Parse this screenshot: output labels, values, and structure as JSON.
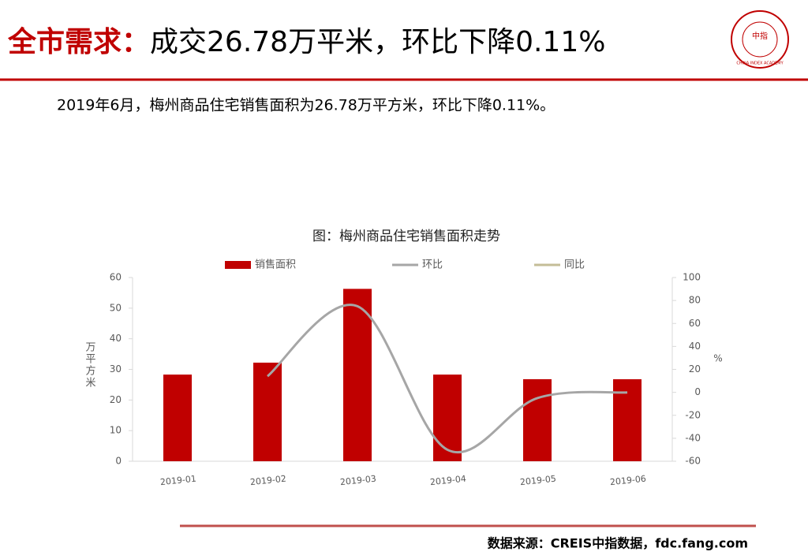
{
  "header": {
    "title_lead": "全市需求：",
    "title_rest": "成交26.78万平米，环比下降0.11%",
    "subtitle": "2019年6月，梅州商品住宅销售面积为26.78万平方米，环比下降0.11%。"
  },
  "logo": {
    "text": "CHINA INDEX ACADEMY",
    "mark": "中指"
  },
  "chart_data": {
    "type": "bar",
    "title": "图：梅州商品住宅销售面积走势",
    "categories": [
      "2019-01",
      "2019-02",
      "2019-03",
      "2019-04",
      "2019-05",
      "2019-06"
    ],
    "series": [
      {
        "name": "销售面积",
        "type": "bar",
        "color": "#c00000",
        "values": [
          28.3,
          32.2,
          56.3,
          28.3,
          26.8,
          26.78
        ]
      },
      {
        "name": "环比",
        "type": "line",
        "axis": "y2",
        "color": "#a6a6a6",
        "values": [
          null,
          14,
          75,
          -50,
          -5,
          -0.11
        ]
      },
      {
        "name": "同比",
        "type": "line",
        "axis": "y2",
        "color": "#c4bd97",
        "values": [
          null,
          null,
          null,
          null,
          null,
          null
        ]
      }
    ],
    "ylabel": "万平方米",
    "y2label": "%",
    "ylim": [
      0,
      60
    ],
    "yticks": [
      0,
      10,
      20,
      30,
      40,
      50,
      60
    ],
    "y2lim": [
      -60,
      100
    ],
    "y2ticks": [
      -60,
      -40,
      -20,
      0,
      20,
      40,
      60,
      80,
      100
    ],
    "smooth": true
  },
  "footer": {
    "source": "数据来源：CREIS中指数据，fdc.fang.com"
  }
}
